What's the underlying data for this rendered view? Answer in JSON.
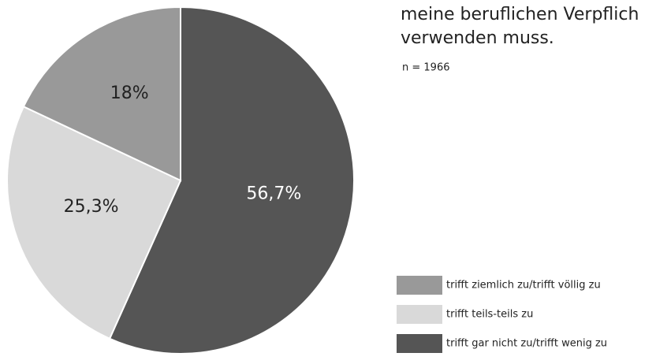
{
  "chart_data": {
    "type": "pie",
    "title": [
      "meine beruflichen Verpflich",
      "verwenden muss."
    ],
    "subtitle": "n = 1966",
    "categories": [
      "trifft ziemlich zu/trifft völlig zu",
      "trifft teils-teils zu",
      "trifft gar nicht zu/trifft wenig zu"
    ],
    "values": [
      18,
      25.3,
      56.7
    ],
    "value_labels": [
      "18%",
      "25,3%",
      "56,7%"
    ],
    "colors": [
      "#999999",
      "#d9d9d9",
      "#555555"
    ],
    "legend": "lower right"
  }
}
